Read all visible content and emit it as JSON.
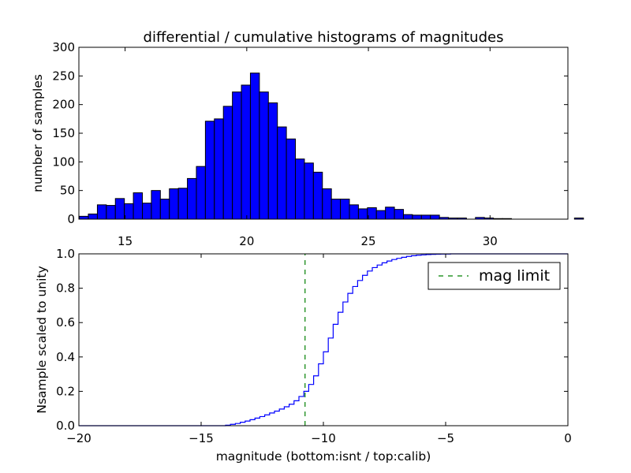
{
  "title": "differential / cumulative histograms of magnitudes",
  "colors": {
    "bar_fill": "#0000ff",
    "bar_edge": "#000000",
    "step_line": "#0000ff",
    "limit_line": "#008000",
    "frame": "#000000"
  },
  "chart_data": [
    {
      "type": "bar",
      "title": "differential / cumulative histograms of magnitudes",
      "xlabel": "",
      "ylabel": "number of samples",
      "xlim": [
        13.1,
        33.2
      ],
      "ylim": [
        0,
        300
      ],
      "xticks": [
        15,
        20,
        25,
        30
      ],
      "yticks": [
        0,
        50,
        100,
        150,
        200,
        250,
        300
      ],
      "bin_width": 0.37,
      "bin_start": 13.12,
      "values": [
        5,
        9,
        25,
        24,
        36,
        27,
        46,
        28,
        50,
        35,
        53,
        54,
        71,
        92,
        171,
        175,
        197,
        222,
        234,
        255,
        222,
        203,
        161,
        140,
        105,
        98,
        82,
        53,
        35,
        35,
        25,
        18,
        20,
        15,
        21,
        17,
        8,
        7,
        7,
        7,
        3,
        2,
        2,
        0,
        3,
        2,
        1,
        1,
        0,
        0,
        0,
        0,
        0,
        0,
        0,
        2
      ]
    },
    {
      "type": "line",
      "title": "",
      "xlabel": "magnitude (bottom:isnt / top:calib)",
      "ylabel": "Nsample scaled to unity",
      "xlim": [
        -20,
        0
      ],
      "ylim": [
        0,
        1.0
      ],
      "xticks": [
        -20,
        -15,
        -10,
        -5,
        0
      ],
      "xtick_labels": [
        "−20",
        "−15",
        "−10",
        "−5",
        "0"
      ],
      "yticks": [
        0.0,
        0.2,
        0.4,
        0.6,
        0.8,
        1.0
      ],
      "ytick_labels": [
        "0.0",
        "0.2",
        "0.4",
        "0.6",
        "0.8",
        "1.0"
      ],
      "series": [
        {
          "name": "cumulative",
          "style": "step",
          "x": [
            -20,
            -14.0,
            -13.8,
            -13.6,
            -13.4,
            -13.2,
            -13.0,
            -12.8,
            -12.6,
            -12.4,
            -12.2,
            -12.0,
            -11.8,
            -11.6,
            -11.4,
            -11.2,
            -11.0,
            -10.8,
            -10.6,
            -10.4,
            -10.2,
            -10.0,
            -9.8,
            -9.6,
            -9.4,
            -9.2,
            -9.0,
            -8.8,
            -8.6,
            -8.4,
            -8.2,
            -8.0,
            -7.8,
            -7.6,
            -7.4,
            -7.2,
            -7.0,
            -6.8,
            -6.6,
            -6.4,
            -6.2,
            -6.0,
            -5.8,
            -5.6,
            -5.4,
            -5.2,
            -5.0,
            -4.8,
            -4.6,
            -4.4,
            -4.2,
            -4.0,
            -3.0,
            0
          ],
          "y": [
            0.0,
            0.003,
            0.008,
            0.013,
            0.02,
            0.027,
            0.035,
            0.044,
            0.053,
            0.063,
            0.074,
            0.085,
            0.097,
            0.11,
            0.125,
            0.145,
            0.17,
            0.2,
            0.24,
            0.29,
            0.36,
            0.43,
            0.51,
            0.59,
            0.66,
            0.72,
            0.77,
            0.81,
            0.845,
            0.875,
            0.9,
            0.92,
            0.935,
            0.948,
            0.958,
            0.967,
            0.974,
            0.98,
            0.985,
            0.989,
            0.992,
            0.994,
            0.996,
            0.997,
            0.998,
            0.999,
            0.999,
            1.0,
            1.0,
            1.0,
            1.0,
            1.0,
            1.0,
            1.0
          ]
        },
        {
          "name": "mag limit",
          "style": "dashed",
          "x": [
            -10.75,
            -10.75
          ],
          "y": [
            0,
            1.0
          ]
        }
      ],
      "legend": {
        "label": "mag limit",
        "placement": "top-right"
      }
    }
  ]
}
